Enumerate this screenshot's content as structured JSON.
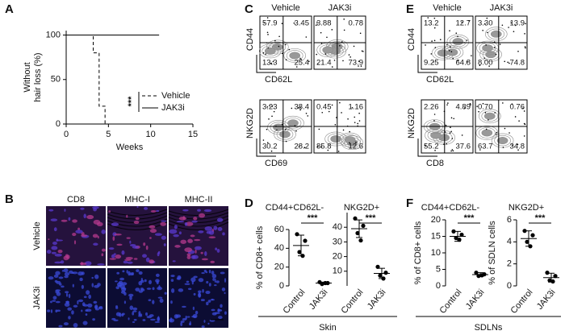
{
  "chart_data": [
    {
      "type": "line",
      "panel_label": "A",
      "ylabel": [
        "Without",
        "hair loss (%)"
      ],
      "xlabel": "Weeks",
      "xlim": [
        0,
        15
      ],
      "xticks": [
        0,
        5,
        10,
        15
      ],
      "ylim": [
        0,
        105
      ],
      "yticks": [
        0,
        50,
        100
      ],
      "annotation": "***",
      "series": [
        {
          "name": "Vehicle",
          "color": "#000000",
          "dash": true,
          "x": [
            0,
            3.2,
            3.2,
            3.9,
            3.9,
            4.6,
            4.6
          ],
          "values": [
            100,
            100,
            80,
            80,
            20,
            20,
            0
          ]
        },
        {
          "name": "JAK3i",
          "color": "#000000",
          "dash": false,
          "x": [
            0,
            11
          ],
          "values": [
            100,
            100
          ]
        }
      ]
    },
    {
      "type": "dot",
      "panel_label": "D",
      "title": "CD44+CD62L-",
      "ylabel": "% of CD8+ cells",
      "group_label": "Skin",
      "annotation": "***",
      "categories": [
        "Control",
        "JAK3i"
      ],
      "values": [
        [
          55,
          48,
          36,
          32
        ],
        [
          4,
          3,
          2,
          3
        ]
      ],
      "means": [
        43,
        3
      ],
      "errors": [
        11,
        1
      ],
      "ylim": [
        0,
        60
      ],
      "yticks": [
        0,
        20,
        40,
        60
      ],
      "color": "#000000"
    },
    {
      "type": "dot",
      "title": "NKG2D+",
      "annotation": "***",
      "categories": [
        "Control",
        "JAK3i"
      ],
      "values": [
        [
          46,
          41,
          36,
          31
        ],
        [
          13,
          9,
          7,
          5
        ]
      ],
      "means": [
        39,
        8.5
      ],
      "errors": [
        6,
        3.5
      ],
      "ylim": [
        0,
        50
      ],
      "yticks": [
        10,
        20,
        30,
        40
      ],
      "color": "#000000"
    },
    {
      "type": "dot",
      "panel_label": "F",
      "title": "CD44+CD62L-",
      "ylabel": "% of CD8+ cells",
      "group_label": "SDLNs",
      "annotation": "***",
      "categories": [
        "Control",
        "JAK3i"
      ],
      "values": [
        [
          16.5,
          15.5,
          14.5,
          14
        ],
        [
          4,
          3.5,
          3,
          3.2
        ]
      ],
      "means": [
        15,
        3.4
      ],
      "errors": [
        1.5,
        0.6
      ],
      "ylim": [
        0,
        20
      ],
      "yticks": [
        0,
        5,
        10,
        15,
        20
      ],
      "color": "#000000"
    },
    {
      "type": "dot",
      "title": "NKG2D+",
      "ylabel": "% of SDLN cells",
      "annotation": "***",
      "categories": [
        "Control",
        "JAK3i"
      ],
      "values": [
        [
          5.0,
          4.6,
          4.0,
          3.6
        ],
        [
          1.2,
          0.9,
          0.5,
          0.4
        ]
      ],
      "means": [
        4.3,
        0.75
      ],
      "errors": [
        0.7,
        0.4
      ],
      "ylim": [
        0,
        6
      ],
      "yticks": [
        0,
        2,
        4,
        6
      ],
      "color": "#000000"
    }
  ],
  "micrograph_panel": {
    "panel_label": "B",
    "columns": [
      "CD8",
      "MHC-I",
      "MHC-II"
    ],
    "rows": [
      "Vehicle",
      "JAK3i"
    ]
  },
  "flow_panels": [
    {
      "panel_label": "C",
      "columns": [
        "Vehicle",
        "JAK3i"
      ],
      "rows": [
        {
          "y_axis": "CD44",
          "x_axis": "CD62L",
          "quadrants": [
            [
              "57.9",
              "3.45",
              "13.3",
              "25.4"
            ],
            [
              "3.88",
              "0.78",
              "21.4",
              "73.9"
            ]
          ]
        },
        {
          "y_axis": "NKG2D",
          "x_axis": "CD69",
          "quadrants": [
            [
              "3.23",
              "38.4",
              "30.2",
              "28.2"
            ],
            [
              "0.45",
              "1.16",
              "85.8",
              "12.6"
            ]
          ]
        }
      ]
    },
    {
      "panel_label": "E",
      "columns": [
        "Vehicle",
        "JAK3i"
      ],
      "rows": [
        {
          "y_axis": "CD44",
          "x_axis": "CD62L",
          "quadrants": [
            [
              "13.2",
              "12.7",
              "9.25",
              "64.8"
            ],
            [
              "3.30",
              "13.9",
              "8.00",
              "74.8"
            ]
          ]
        },
        {
          "y_axis": "NKG2D",
          "x_axis": "CD8",
          "quadrants": [
            [
              "2.26",
              "4.89",
              "55.2",
              "37.6"
            ],
            [
              "0.70",
              "0.76",
              "63.7",
              "34.8"
            ]
          ]
        }
      ]
    }
  ]
}
